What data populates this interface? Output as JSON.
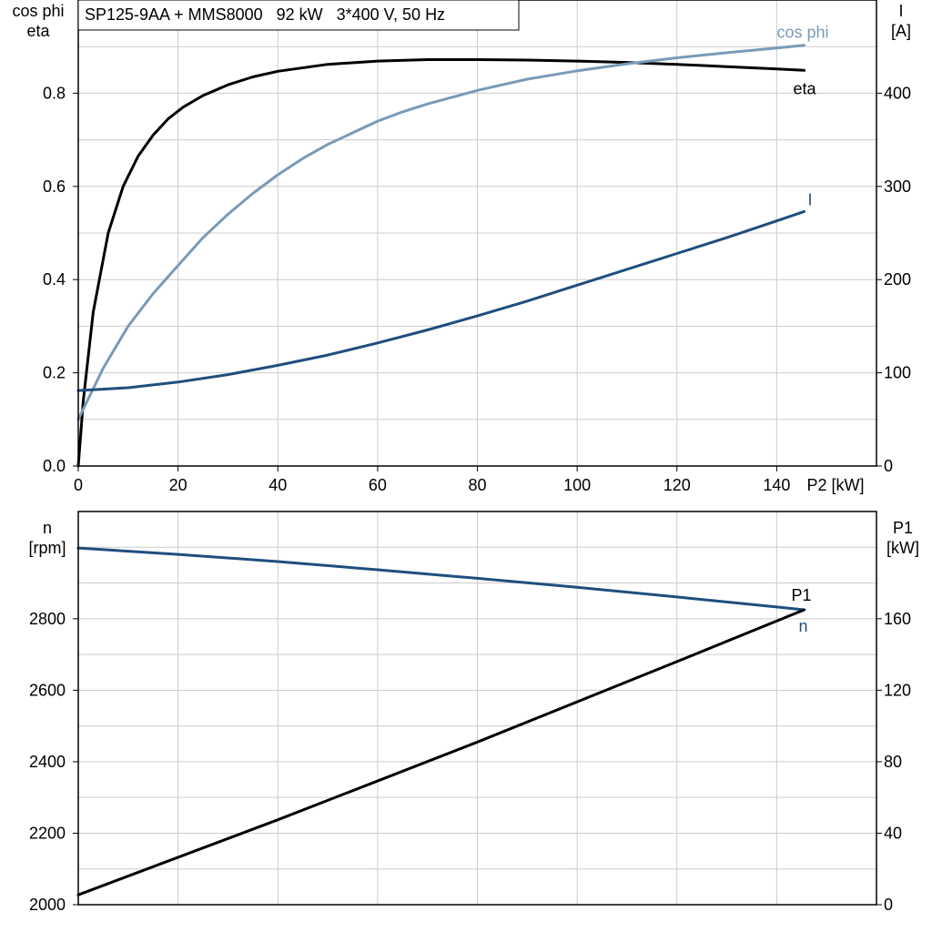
{
  "chart_data": [
    {
      "type": "line",
      "title": "SP125-9AA + MMS8000   92 kW   3*400 V, 50 Hz",
      "xlabel": "P2 [kW]",
      "xlim": [
        0,
        160
      ],
      "xticks": [
        0,
        20,
        40,
        60,
        80,
        100,
        120,
        140
      ],
      "ylabel_left": "cos phi\neta",
      "ylim_left": [
        0,
        1.0
      ],
      "yticks_left": [
        "0.0",
        "0.2",
        "0.4",
        "0.6",
        "0.8"
      ],
      "ylabel_right": "I\n[A]",
      "ylim_right": [
        0,
        500
      ],
      "yticks_right": [
        "0",
        "100",
        "200",
        "300",
        "400"
      ],
      "grid": true,
      "series": [
        {
          "name": "eta",
          "axis": "left",
          "color": "#000000",
          "x": [
            0,
            1,
            3,
            6,
            9,
            12,
            15,
            18,
            21,
            25,
            30,
            35,
            40,
            50,
            60,
            70,
            80,
            90,
            100,
            110,
            120,
            130,
            140,
            145.5
          ],
          "y": [
            0,
            0.14,
            0.33,
            0.5,
            0.6,
            0.665,
            0.71,
            0.745,
            0.77,
            0.795,
            0.818,
            0.835,
            0.847,
            0.862,
            0.869,
            0.872,
            0.872,
            0.871,
            0.869,
            0.866,
            0.862,
            0.857,
            0.852,
            0.849
          ]
        },
        {
          "name": "cos phi",
          "axis": "left",
          "color": "#7a9ab8",
          "x": [
            0,
            5,
            10,
            15,
            20,
            25,
            30,
            35,
            40,
            45,
            50,
            55,
            60,
            65,
            70,
            80,
            90,
            100,
            110,
            120,
            130,
            140,
            145.5
          ],
          "y": [
            0.1,
            0.21,
            0.3,
            0.37,
            0.43,
            0.49,
            0.54,
            0.585,
            0.625,
            0.66,
            0.69,
            0.715,
            0.74,
            0.76,
            0.777,
            0.806,
            0.83,
            0.848,
            0.863,
            0.876,
            0.887,
            0.897,
            0.903
          ]
        },
        {
          "name": "I",
          "axis": "right",
          "color": "#1f4e7e",
          "x": [
            0,
            10,
            20,
            30,
            40,
            50,
            60,
            70,
            80,
            90,
            100,
            110,
            120,
            130,
            140,
            145.5
          ],
          "y": [
            81,
            84,
            90,
            98,
            108,
            119,
            132,
            146,
            161,
            177,
            194,
            211,
            228,
            245,
            263,
            273
          ]
        }
      ]
    },
    {
      "type": "line",
      "xlim": [
        0,
        160
      ],
      "ylabel_left": "n\n[rpm]",
      "ylim_left": [
        2000,
        3100
      ],
      "yticks_left": [
        "2000",
        "2200",
        "2400",
        "2600",
        "2800"
      ],
      "ylabel_right": "P1\n[kW]",
      "ylim_right": [
        0,
        220
      ],
      "yticks_right": [
        "0",
        "40",
        "80",
        "120",
        "160"
      ],
      "grid": true,
      "series": [
        {
          "name": "n",
          "axis": "left",
          "color": "#1f4e7e",
          "x": [
            0,
            20,
            40,
            60,
            80,
            100,
            120,
            140,
            145.5
          ],
          "y": [
            2998,
            2980,
            2960,
            2937,
            2913,
            2888,
            2861,
            2833,
            2825
          ]
        },
        {
          "name": "P1",
          "axis": "right",
          "color": "#000000",
          "x": [
            0,
            40,
            80,
            120,
            145.5
          ],
          "y": [
            5.5,
            47.5,
            91,
            136,
            165
          ]
        }
      ]
    }
  ]
}
